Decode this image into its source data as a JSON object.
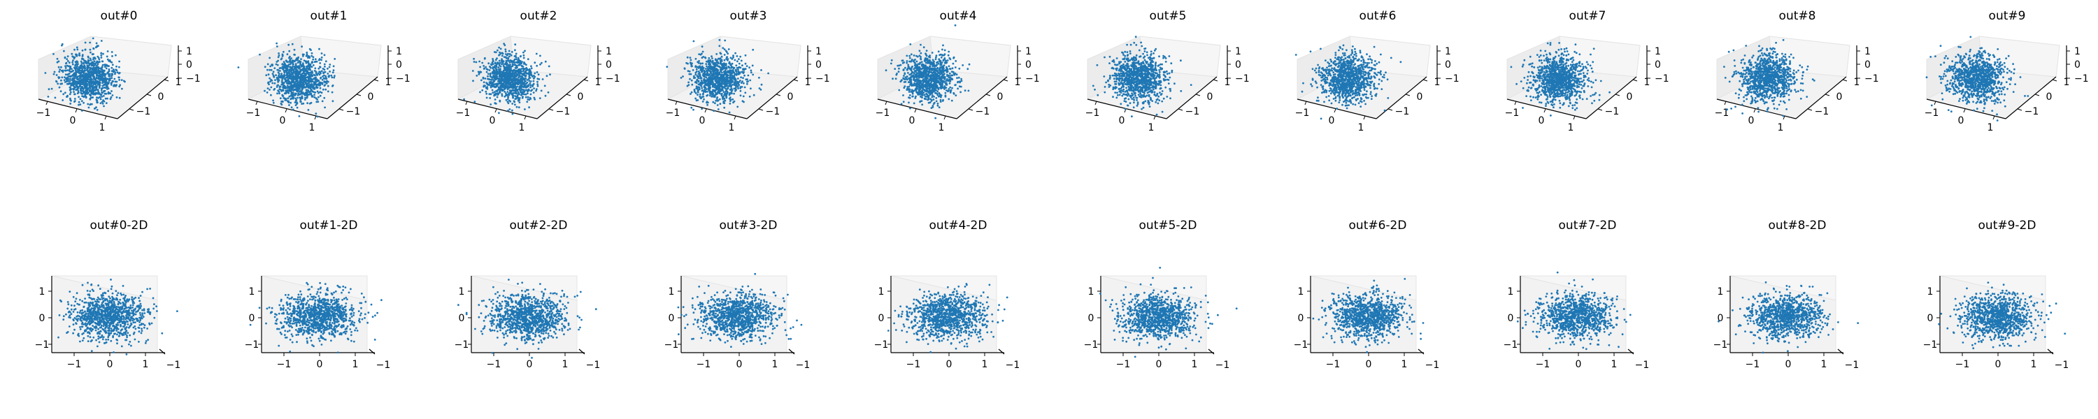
{
  "figure": {
    "rows": 2,
    "cols": 10
  },
  "colors": {
    "points": "#1f77b4",
    "pane": "#f2f2f2",
    "axis": "#000000"
  },
  "chart_data": [
    {
      "type": "scatter",
      "title": "out#0",
      "projection": "3d",
      "xlim": [
        -1.6,
        1.6
      ],
      "ylim": [
        -1.6,
        1.6
      ],
      "zlim": [
        -1.6,
        1.6
      ],
      "x_ticks": [
        "−1",
        "0",
        "1"
      ],
      "y_ticks": [
        "−1",
        "0",
        "1"
      ],
      "z_ticks": [
        "1",
        "0",
        "−1"
      ],
      "grid": false,
      "distribution": {
        "kind": "bivariate_normal",
        "mean": [
          0,
          0
        ],
        "std": [
          0.25,
          0.25
        ],
        "n_points": 1000
      }
    },
    {
      "type": "scatter",
      "title": "out#1",
      "projection": "3d",
      "xlim": [
        -1.6,
        1.6
      ],
      "ylim": [
        -1.6,
        1.6
      ],
      "zlim": [
        -1.6,
        1.6
      ],
      "x_ticks": [
        "−1",
        "0",
        "1"
      ],
      "y_ticks": [
        "−1",
        "0",
        "1"
      ],
      "z_ticks": [
        "1",
        "0",
        "−1"
      ],
      "grid": false,
      "distribution": {
        "kind": "bivariate_normal",
        "mean": [
          0,
          0
        ],
        "std": [
          0.25,
          0.25
        ],
        "n_points": 1000
      }
    },
    {
      "type": "scatter",
      "title": "out#2",
      "projection": "3d",
      "xlim": [
        -1.6,
        1.6
      ],
      "ylim": [
        -1.6,
        1.6
      ],
      "zlim": [
        -1.6,
        1.6
      ],
      "x_ticks": [
        "−1",
        "0",
        "1"
      ],
      "y_ticks": [
        "−1",
        "0",
        "1"
      ],
      "z_ticks": [
        "1",
        "0",
        "−1"
      ],
      "grid": false,
      "distribution": {
        "kind": "bivariate_normal",
        "mean": [
          0,
          0
        ],
        "std": [
          0.25,
          0.25
        ],
        "n_points": 1000
      }
    },
    {
      "type": "scatter",
      "title": "out#3",
      "projection": "3d",
      "xlim": [
        -1.6,
        1.6
      ],
      "ylim": [
        -1.6,
        1.6
      ],
      "zlim": [
        -1.6,
        1.6
      ],
      "x_ticks": [
        "−1",
        "0",
        "1"
      ],
      "y_ticks": [
        "−1",
        "0",
        "1"
      ],
      "z_ticks": [
        "1",
        "0",
        "−1"
      ],
      "grid": false,
      "distribution": {
        "kind": "bivariate_normal",
        "mean": [
          0,
          0
        ],
        "std": [
          0.25,
          0.25
        ],
        "n_points": 1000
      }
    },
    {
      "type": "scatter",
      "title": "out#4",
      "projection": "3d",
      "xlim": [
        -1.6,
        1.6
      ],
      "ylim": [
        -1.6,
        1.6
      ],
      "zlim": [
        -1.6,
        1.6
      ],
      "x_ticks": [
        "−1",
        "0",
        "1"
      ],
      "y_ticks": [
        "−1",
        "0",
        "1"
      ],
      "z_ticks": [
        "1",
        "0",
        "−1"
      ],
      "grid": false,
      "distribution": {
        "kind": "bivariate_normal",
        "mean": [
          0,
          0
        ],
        "std": [
          0.25,
          0.25
        ],
        "n_points": 1000
      }
    },
    {
      "type": "scatter",
      "title": "out#5",
      "projection": "3d",
      "xlim": [
        -1.6,
        1.6
      ],
      "ylim": [
        -1.6,
        1.6
      ],
      "zlim": [
        -1.6,
        1.6
      ],
      "x_ticks": [
        "−1",
        "0",
        "1"
      ],
      "y_ticks": [
        "−1",
        "0",
        "1"
      ],
      "z_ticks": [
        "1",
        "0",
        "−1"
      ],
      "grid": false,
      "distribution": {
        "kind": "bivariate_normal",
        "mean": [
          0,
          0
        ],
        "std": [
          0.25,
          0.25
        ],
        "n_points": 1000
      }
    },
    {
      "type": "scatter",
      "title": "out#6",
      "projection": "3d",
      "xlim": [
        -1.6,
        1.6
      ],
      "ylim": [
        -1.6,
        1.6
      ],
      "zlim": [
        -1.6,
        1.6
      ],
      "x_ticks": [
        "−1",
        "0",
        "1"
      ],
      "y_ticks": [
        "−1",
        "0",
        "1"
      ],
      "z_ticks": [
        "1",
        "0",
        "−1"
      ],
      "grid": false,
      "distribution": {
        "kind": "bivariate_normal",
        "mean": [
          0,
          0
        ],
        "std": [
          0.25,
          0.25
        ],
        "n_points": 1000
      }
    },
    {
      "type": "scatter",
      "title": "out#7",
      "projection": "3d",
      "xlim": [
        -1.6,
        1.6
      ],
      "ylim": [
        -1.6,
        1.6
      ],
      "zlim": [
        -1.6,
        1.6
      ],
      "x_ticks": [
        "−1",
        "0",
        "1"
      ],
      "y_ticks": [
        "−1",
        "0",
        "1"
      ],
      "z_ticks": [
        "1",
        "0",
        "−1"
      ],
      "grid": false,
      "distribution": {
        "kind": "bivariate_normal",
        "mean": [
          0,
          0
        ],
        "std": [
          0.25,
          0.25
        ],
        "n_points": 1000
      }
    },
    {
      "type": "scatter",
      "title": "out#8",
      "projection": "3d",
      "xlim": [
        -1.6,
        1.6
      ],
      "ylim": [
        -1.6,
        1.6
      ],
      "zlim": [
        -1.6,
        1.6
      ],
      "x_ticks": [
        "−1",
        "0",
        "1"
      ],
      "y_ticks": [
        "−1",
        "0",
        "1"
      ],
      "z_ticks": [
        "1",
        "0",
        "−1"
      ],
      "grid": false,
      "distribution": {
        "kind": "bivariate_normal",
        "mean": [
          0,
          0
        ],
        "std": [
          0.25,
          0.25
        ],
        "n_points": 1000
      }
    },
    {
      "type": "scatter",
      "title": "out#9",
      "projection": "3d",
      "xlim": [
        -1.6,
        1.6
      ],
      "ylim": [
        -1.6,
        1.6
      ],
      "zlim": [
        -1.6,
        1.6
      ],
      "x_ticks": [
        "−1",
        "0",
        "1"
      ],
      "y_ticks": [
        "−1",
        "0",
        "1"
      ],
      "z_ticks": [
        "1",
        "0",
        "−1"
      ],
      "grid": false,
      "distribution": {
        "kind": "bivariate_normal",
        "mean": [
          0,
          0
        ],
        "std": [
          0.25,
          0.25
        ],
        "n_points": 1000
      }
    },
    {
      "type": "scatter",
      "title": "out#0-2D",
      "projection": "3d-side",
      "xlim": [
        -1.6,
        1.6
      ],
      "ylim": [
        -1.6,
        1.6
      ],
      "x_ticks": [
        "−1",
        "0",
        "1"
      ],
      "y_ticks": [
        "1",
        "0",
        "−1"
      ],
      "depth_tick": "−1",
      "grid": false,
      "distribution": {
        "kind": "bivariate_normal",
        "mean": [
          0,
          0
        ],
        "std": [
          0.25,
          0.25
        ],
        "n_points": 1000
      }
    },
    {
      "type": "scatter",
      "title": "out#1-2D",
      "projection": "3d-side",
      "xlim": [
        -1.6,
        1.6
      ],
      "ylim": [
        -1.6,
        1.6
      ],
      "x_ticks": [
        "−1",
        "0",
        "1"
      ],
      "y_ticks": [
        "1",
        "0",
        "−1"
      ],
      "depth_tick": "−1",
      "grid": false,
      "distribution": {
        "kind": "bivariate_normal",
        "mean": [
          0,
          0
        ],
        "std": [
          0.25,
          0.25
        ],
        "n_points": 1000
      }
    },
    {
      "type": "scatter",
      "title": "out#2-2D",
      "projection": "3d-side",
      "xlim": [
        -1.6,
        1.6
      ],
      "ylim": [
        -1.6,
        1.6
      ],
      "x_ticks": [
        "−1",
        "0",
        "1"
      ],
      "y_ticks": [
        "1",
        "0",
        "−1"
      ],
      "depth_tick": "−1",
      "grid": false,
      "distribution": {
        "kind": "bivariate_normal",
        "mean": [
          0,
          0
        ],
        "std": [
          0.25,
          0.25
        ],
        "n_points": 1000
      }
    },
    {
      "type": "scatter",
      "title": "out#3-2D",
      "projection": "3d-side",
      "xlim": [
        -1.6,
        1.6
      ],
      "ylim": [
        -1.6,
        1.6
      ],
      "x_ticks": [
        "−1",
        "0",
        "1"
      ],
      "y_ticks": [
        "1",
        "0",
        "−1"
      ],
      "depth_tick": "−1",
      "grid": false,
      "distribution": {
        "kind": "bivariate_normal",
        "mean": [
          0,
          0
        ],
        "std": [
          0.25,
          0.25
        ],
        "n_points": 1000
      }
    },
    {
      "type": "scatter",
      "title": "out#4-2D",
      "projection": "3d-side",
      "xlim": [
        -1.6,
        1.6
      ],
      "ylim": [
        -1.6,
        1.6
      ],
      "x_ticks": [
        "−1",
        "0",
        "1"
      ],
      "y_ticks": [
        "1",
        "0",
        "−1"
      ],
      "depth_tick": "−1",
      "grid": false,
      "distribution": {
        "kind": "bivariate_normal",
        "mean": [
          0,
          0
        ],
        "std": [
          0.25,
          0.25
        ],
        "n_points": 1000
      }
    },
    {
      "type": "scatter",
      "title": "out#5-2D",
      "projection": "3d-side",
      "xlim": [
        -1.6,
        1.6
      ],
      "ylim": [
        -1.6,
        1.6
      ],
      "x_ticks": [
        "−1",
        "0",
        "1"
      ],
      "y_ticks": [
        "1",
        "0",
        "−1"
      ],
      "depth_tick": "−1",
      "grid": false,
      "distribution": {
        "kind": "bivariate_normal",
        "mean": [
          0,
          0
        ],
        "std": [
          0.25,
          0.25
        ],
        "n_points": 1000
      }
    },
    {
      "type": "scatter",
      "title": "out#6-2D",
      "projection": "3d-side",
      "xlim": [
        -1.6,
        1.6
      ],
      "ylim": [
        -1.6,
        1.6
      ],
      "x_ticks": [
        "−1",
        "0",
        "1"
      ],
      "y_ticks": [
        "1",
        "0",
        "−1"
      ],
      "depth_tick": "−1",
      "grid": false,
      "distribution": {
        "kind": "bivariate_normal",
        "mean": [
          0,
          0
        ],
        "std": [
          0.25,
          0.25
        ],
        "n_points": 1000
      }
    },
    {
      "type": "scatter",
      "title": "out#7-2D",
      "projection": "3d-side",
      "xlim": [
        -1.6,
        1.6
      ],
      "ylim": [
        -1.6,
        1.6
      ],
      "x_ticks": [
        "−1",
        "0",
        "1"
      ],
      "y_ticks": [
        "1",
        "0",
        "−1"
      ],
      "depth_tick": "−1",
      "grid": false,
      "distribution": {
        "kind": "bivariate_normal",
        "mean": [
          0,
          0
        ],
        "std": [
          0.25,
          0.25
        ],
        "n_points": 1000
      }
    },
    {
      "type": "scatter",
      "title": "out#8-2D",
      "projection": "3d-side",
      "xlim": [
        -1.6,
        1.6
      ],
      "ylim": [
        -1.6,
        1.6
      ],
      "x_ticks": [
        "−1",
        "0",
        "1"
      ],
      "y_ticks": [
        "1",
        "0",
        "−1"
      ],
      "depth_tick": "−1",
      "grid": false,
      "distribution": {
        "kind": "bivariate_normal",
        "mean": [
          0,
          0
        ],
        "std": [
          0.25,
          0.25
        ],
        "n_points": 1000
      }
    },
    {
      "type": "scatter",
      "title": "out#9-2D",
      "projection": "3d-side",
      "xlim": [
        -1.6,
        1.6
      ],
      "ylim": [
        -1.6,
        1.6
      ],
      "x_ticks": [
        "−1",
        "0",
        "1"
      ],
      "y_ticks": [
        "1",
        "0",
        "−1"
      ],
      "depth_tick": "−1",
      "grid": false,
      "distribution": {
        "kind": "bivariate_normal",
        "mean": [
          0,
          0
        ],
        "std": [
          0.25,
          0.25
        ],
        "n_points": 1000
      }
    }
  ]
}
